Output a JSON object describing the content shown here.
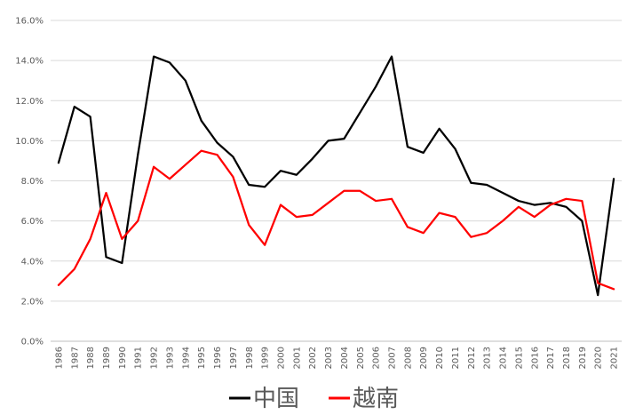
{
  "chart_data": {
    "type": "line",
    "title": "",
    "xlabel": "",
    "ylabel": "",
    "x": [
      "1986",
      "1987",
      "1988",
      "1989",
      "1990",
      "1991",
      "1992",
      "1993",
      "1994",
      "1995",
      "1996",
      "1997",
      "1998",
      "1999",
      "2000",
      "2001",
      "2002",
      "2003",
      "2004",
      "2005",
      "2006",
      "2007",
      "2008",
      "2009",
      "2010",
      "2011",
      "2012",
      "2013",
      "2014",
      "2015",
      "2016",
      "2017",
      "2018",
      "2019",
      "2020",
      "2021"
    ],
    "ylim": [
      0,
      16
    ],
    "yticks": [
      "0.0%",
      "2.0%",
      "4.0%",
      "6.0%",
      "8.0%",
      "10.0%",
      "12.0%",
      "14.0%",
      "16.0%"
    ],
    "grid": true,
    "legend_position": "bottom",
    "series": [
      {
        "name": "中国",
        "color": "#000000",
        "values": [
          8.9,
          11.7,
          11.2,
          4.2,
          3.9,
          9.3,
          14.2,
          13.9,
          13.0,
          11.0,
          9.9,
          9.2,
          7.8,
          7.7,
          8.5,
          8.3,
          9.1,
          10.0,
          10.1,
          11.4,
          12.7,
          14.2,
          9.7,
          9.4,
          10.6,
          9.6,
          7.9,
          7.8,
          7.4,
          7.0,
          6.8,
          6.9,
          6.7,
          6.0,
          2.3,
          8.1
        ]
      },
      {
        "name": "越南",
        "color": "#ff0000",
        "values": [
          2.8,
          3.6,
          5.1,
          7.4,
          5.1,
          6.0,
          8.7,
          8.1,
          8.8,
          9.5,
          9.3,
          8.2,
          5.8,
          4.8,
          6.8,
          6.2,
          6.3,
          6.9,
          7.5,
          7.5,
          7.0,
          7.1,
          5.7,
          5.4,
          6.4,
          6.2,
          5.2,
          5.4,
          6.0,
          6.7,
          6.2,
          6.8,
          7.1,
          7.0,
          2.9,
          2.6
        ]
      }
    ]
  }
}
